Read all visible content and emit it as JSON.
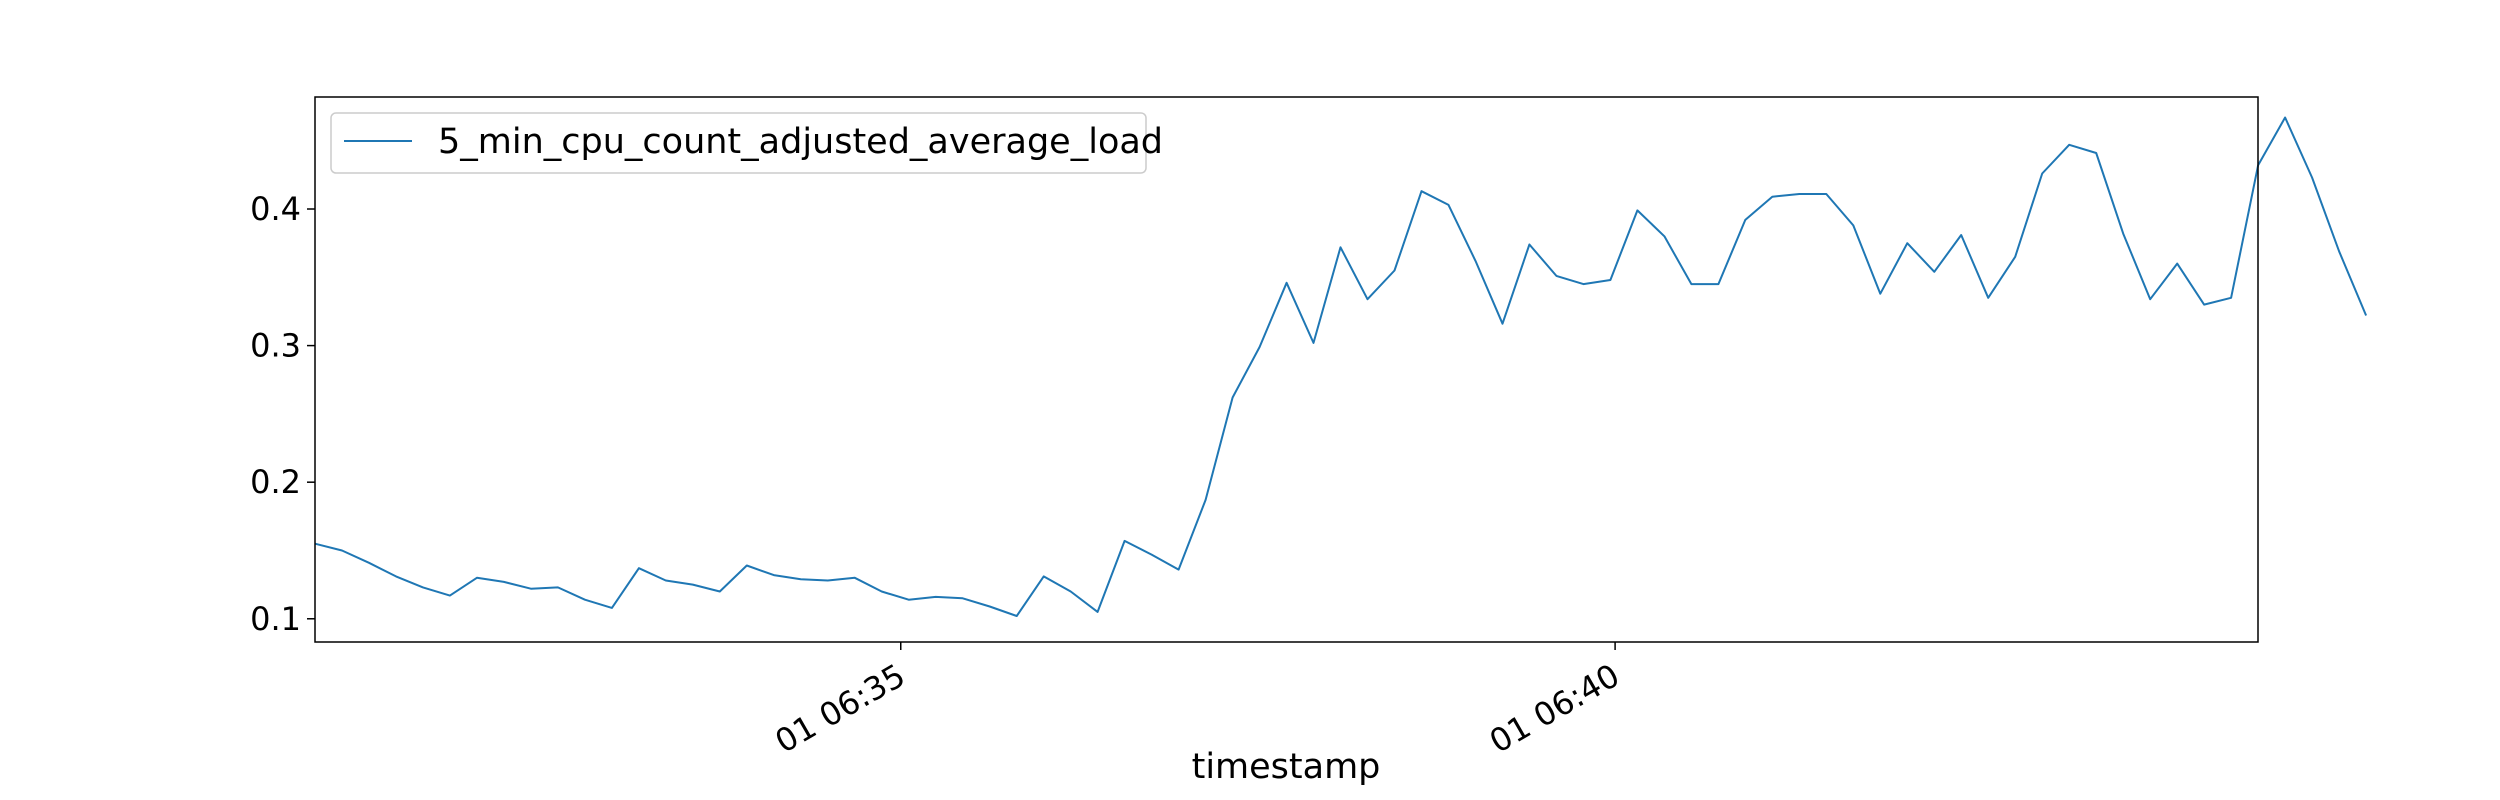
{
  "chart_data": {
    "type": "line",
    "title": "",
    "xlabel": "timestamp",
    "ylabel": "",
    "ylim": [
      0.083,
      0.482
    ],
    "yticks": [
      0.1,
      0.2,
      0.3,
      0.4
    ],
    "ytick_labels": [
      "0.1",
      "0.2",
      "0.3",
      "0.4"
    ],
    "xlim_minutes": [
      30.9,
      44.5
    ],
    "xticks_minutes": [
      35,
      40
    ],
    "xtick_labels": [
      "01 06:35",
      "01 06:40"
    ],
    "grid": false,
    "legend_placement": "top-left",
    "series": [
      {
        "name": "5_min_cpu_count_adjusted_average_load",
        "color": "#1f77b4",
        "x_start_minutes": 30.9,
        "x_step_minutes": 0.1889,
        "values": [
          0.155,
          0.15,
          0.141,
          0.131,
          0.123,
          0.117,
          0.13,
          0.127,
          0.122,
          0.123,
          0.114,
          0.108,
          0.137,
          0.128,
          0.125,
          0.12,
          0.139,
          0.132,
          0.129,
          0.128,
          0.13,
          0.12,
          0.114,
          0.116,
          0.115,
          0.109,
          0.102,
          0.131,
          0.12,
          0.105,
          0.157,
          0.147,
          0.136,
          0.187,
          0.262,
          0.299,
          0.346,
          0.302,
          0.372,
          0.334,
          0.355,
          0.413,
          0.403,
          0.362,
          0.316,
          0.374,
          0.351,
          0.345,
          0.348,
          0.399,
          0.38,
          0.345,
          0.345,
          0.392,
          0.409,
          0.411,
          0.411,
          0.388,
          0.338,
          0.375,
          0.354,
          0.381,
          0.335,
          0.365,
          0.426,
          0.447,
          0.441,
          0.382,
          0.334,
          0.36,
          0.33,
          0.335,
          0.432,
          0.467,
          0.423,
          0.369,
          0.322
        ]
      }
    ]
  }
}
